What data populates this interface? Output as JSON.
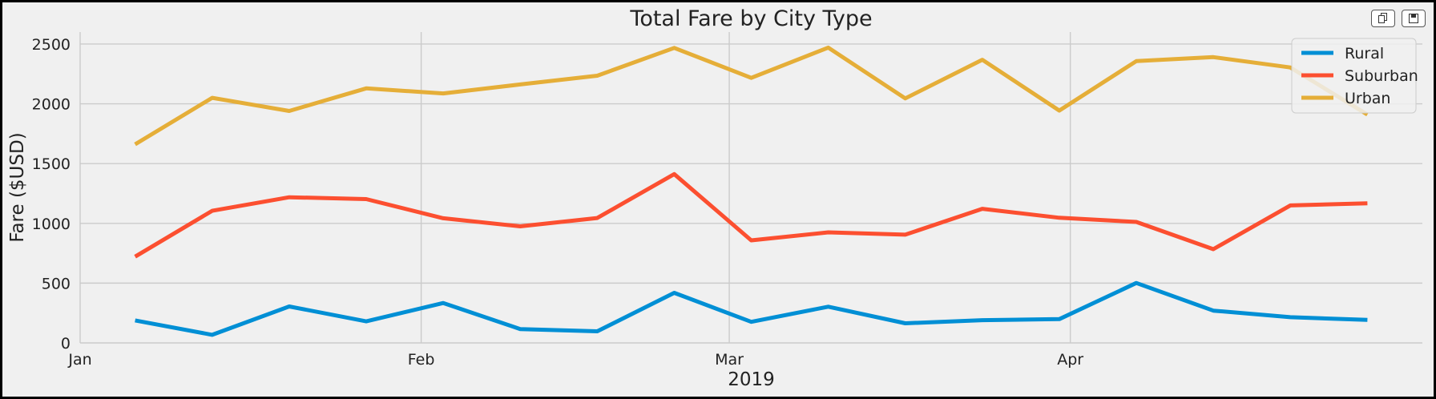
{
  "toolbar": {
    "copy_icon": "copy-icon",
    "save_icon": "save-icon"
  },
  "chart_data": {
    "type": "line",
    "title": "Total Fare by City Type",
    "xlabel": "2019",
    "ylabel": "Fare ($USD)",
    "x": [
      "2019-01-06",
      "2019-01-13",
      "2019-01-20",
      "2019-01-27",
      "2019-02-03",
      "2019-02-10",
      "2019-02-17",
      "2019-02-24",
      "2019-03-03",
      "2019-03-10",
      "2019-03-17",
      "2019-03-24",
      "2019-03-31",
      "2019-04-07",
      "2019-04-14",
      "2019-04-21",
      "2019-04-28"
    ],
    "xlim": [
      "2019-01-01",
      "2019-05-03"
    ],
    "ylim": [
      0,
      2600
    ],
    "xticks": [
      {
        "date": "2019-01-01",
        "label": "Jan"
      },
      {
        "date": "2019-02-01",
        "label": "Feb"
      },
      {
        "date": "2019-03-01",
        "label": "Mar"
      },
      {
        "date": "2019-04-01",
        "label": "Apr"
      }
    ],
    "yticks": [
      0,
      500,
      1000,
      1500,
      2000,
      2500
    ],
    "grid": true,
    "legend_position": "top-right",
    "series": [
      {
        "name": "Rural",
        "color": "#008fd5",
        "values": [
          188,
          68,
          305,
          180,
          334,
          116,
          97,
          419,
          176,
          303,
          164,
          190,
          199,
          501,
          270,
          215,
          192
        ]
      },
      {
        "name": "Suburban",
        "color": "#fc4f30",
        "values": [
          722,
          1105,
          1218,
          1203,
          1043,
          975,
          1045,
          1412,
          858,
          925,
          905,
          1122,
          1047,
          1012,
          784,
          1150,
          1168
        ]
      },
      {
        "name": "Urban",
        "color": "#e5ae38",
        "values": [
          1661,
          2050,
          1940,
          2129,
          2087,
          2162,
          2235,
          2467,
          2217,
          2470,
          2045,
          2368,
          1943,
          2357,
          2390,
          2304,
          1910
        ]
      }
    ]
  }
}
